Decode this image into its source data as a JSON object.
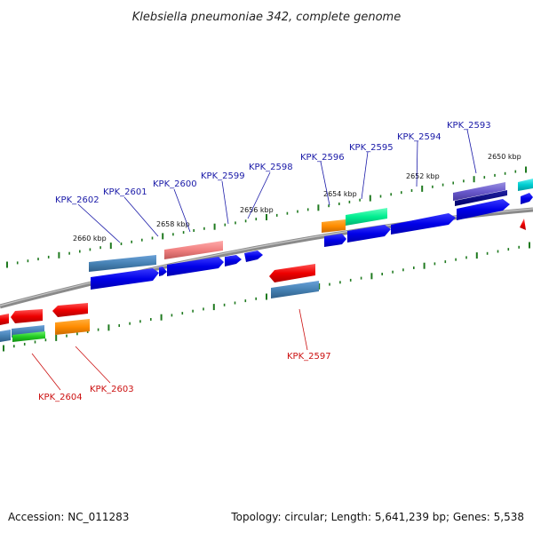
{
  "title": "Klebsiella pneumoniae 342, complete genome",
  "accession": "Accession: NC_011283",
  "summary": "Topology: circular; Length: 5,641,239 bp; Genes: 5,538",
  "colors": {
    "forward_label": "#1a1aa8",
    "reverse_label": "#cc1111",
    "tick": "#1f7a1f",
    "backbone": "#8a8a8a"
  },
  "scale_labels": [
    "2660 kbp",
    "2658 kbp",
    "2656 kbp",
    "2654 kbp",
    "2652 kbp",
    "2650 kbp"
  ],
  "forward_genes": [
    "KPK_2602",
    "KPK_2601",
    "KPK_2600",
    "KPK_2599",
    "KPK_2598",
    "KPK_2596",
    "KPK_2595",
    "KPK_2594",
    "KPK_2593"
  ],
  "reverse_genes": [
    "KPK_2597",
    "KPK_2604",
    "KPK_2603"
  ]
}
